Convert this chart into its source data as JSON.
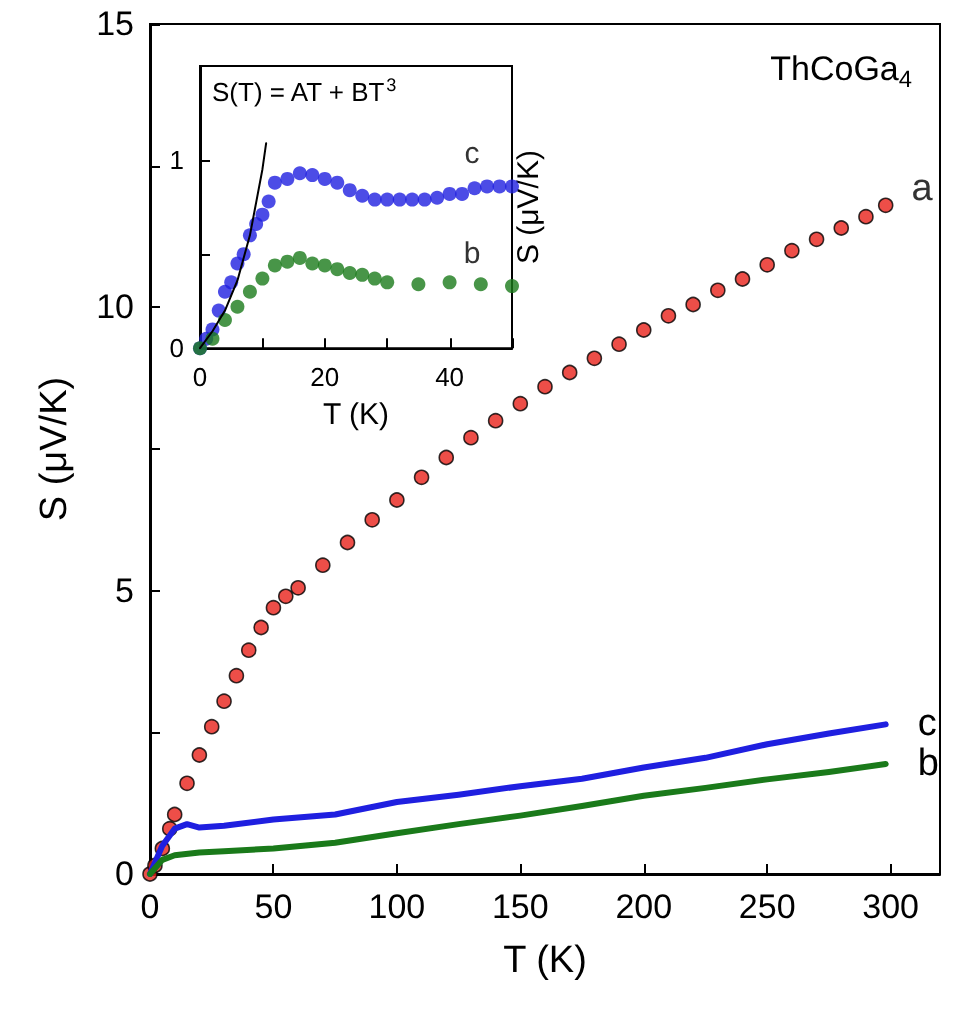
{
  "chart_data": [
    {
      "type": "line",
      "xlabel": "T (K)",
      "ylabel": "S (μV/K)",
      "xlim": [
        0,
        320
      ],
      "ylim": [
        0,
        15
      ],
      "xticks": [
        0,
        50,
        100,
        150,
        200,
        250,
        300
      ],
      "yticks": [
        0,
        {
          "value": 2.5,
          "label": null
        },
        5,
        {
          "value": 7.5,
          "label": null
        },
        10,
        {
          "value": 12.5,
          "label": null
        },
        15
      ],
      "annotations": [
        "ThCoGa$_{4}$"
      ],
      "line_style": "solid",
      "series": [
        {
          "name": "a",
          "type": "scatter",
          "marker": "circle",
          "color": "#e8221a",
          "x": [
            0,
            2,
            5,
            8,
            10,
            15,
            20,
            25,
            30,
            35,
            40,
            45,
            50,
            55,
            60,
            70,
            80,
            90,
            100,
            110,
            120,
            130,
            140,
            150,
            160,
            170,
            180,
            190,
            200,
            210,
            220,
            230,
            240,
            250,
            260,
            270,
            280,
            290,
            298
          ],
          "values": [
            0,
            0.15,
            0.45,
            0.8,
            1.05,
            1.6,
            2.1,
            2.6,
            3.05,
            3.5,
            3.95,
            4.35,
            4.7,
            4.9,
            5.05,
            5.45,
            5.85,
            6.25,
            6.6,
            7.0,
            7.35,
            7.7,
            8.0,
            8.3,
            8.6,
            8.85,
            9.1,
            9.35,
            9.6,
            9.85,
            10.05,
            10.3,
            10.5,
            10.75,
            11.0,
            11.2,
            11.4,
            11.6,
            11.8
          ]
        },
        {
          "name": "c",
          "color": "#1f1fe0",
          "x": [
            0,
            5,
            10,
            15,
            20,
            30,
            50,
            75,
            100,
            125,
            150,
            175,
            200,
            225,
            250,
            275,
            298
          ],
          "values": [
            0,
            0.5,
            0.8,
            0.88,
            0.82,
            0.85,
            0.96,
            1.05,
            1.27,
            1.4,
            1.55,
            1.68,
            1.88,
            2.05,
            2.29,
            2.48,
            2.64
          ]
        },
        {
          "name": "b",
          "color": "#1a7a1a",
          "x": [
            0,
            5,
            10,
            20,
            30,
            50,
            75,
            100,
            125,
            150,
            175,
            200,
            225,
            250,
            275,
            298
          ],
          "values": [
            0,
            0.25,
            0.33,
            0.38,
            0.4,
            0.45,
            0.55,
            0.72,
            0.88,
            1.03,
            1.2,
            1.38,
            1.52,
            1.67,
            1.8,
            1.94
          ]
        }
      ]
    },
    {
      "type": "scatter",
      "xlabel": "T (K)",
      "ylabel": "S (μV/K)",
      "xlim": [
        0,
        50
      ],
      "ylim": [
        0,
        1.5
      ],
      "xticks": [
        0,
        {
          "value": 10,
          "label": null
        },
        20,
        {
          "value": 30,
          "label": null
        },
        40,
        {
          "value": 50,
          "label": null
        }
      ],
      "yticks": [
        0,
        {
          "value": 0.5,
          "label": null
        },
        1
      ],
      "marker": "circle",
      "annotations": [
        "S(T) = AT + BT$^{3}$"
      ],
      "series": [
        {
          "name": "c",
          "color": "#1f1fe0",
          "x": [
            0,
            1,
            2,
            3,
            4,
            5,
            6,
            7,
            8,
            9,
            10,
            11,
            12,
            14,
            16,
            18,
            20,
            22,
            24,
            26,
            28,
            30,
            32,
            34,
            36,
            38,
            40,
            42,
            44,
            46,
            48,
            50
          ],
          "values": [
            0,
            0.05,
            0.1,
            0.2,
            0.3,
            0.35,
            0.45,
            0.5,
            0.6,
            0.66,
            0.71,
            0.78,
            0.88,
            0.9,
            0.93,
            0.92,
            0.9,
            0.88,
            0.84,
            0.81,
            0.79,
            0.79,
            0.79,
            0.79,
            0.79,
            0.8,
            0.82,
            0.82,
            0.85,
            0.86,
            0.86,
            0.86
          ]
        },
        {
          "name": "b",
          "color": "#1a7a1a",
          "x": [
            0,
            2,
            4,
            6,
            8,
            10,
            12,
            14,
            16,
            18,
            20,
            22,
            24,
            26,
            28,
            30,
            35,
            40,
            45,
            50
          ],
          "values": [
            0,
            0.05,
            0.15,
            0.22,
            0.3,
            0.37,
            0.44,
            0.46,
            0.48,
            0.45,
            0.44,
            0.42,
            0.4,
            0.39,
            0.37,
            0.35,
            0.34,
            0.35,
            0.34,
            0.33
          ]
        },
        {
          "type": "line",
          "color": "#000000",
          "marker": "none",
          "x": [
            0,
            2,
            4,
            6,
            8,
            10,
            10.6
          ],
          "values": [
            0,
            0.09,
            0.2,
            0.36,
            0.6,
            0.95,
            1.09
          ]
        }
      ]
    }
  ]
}
